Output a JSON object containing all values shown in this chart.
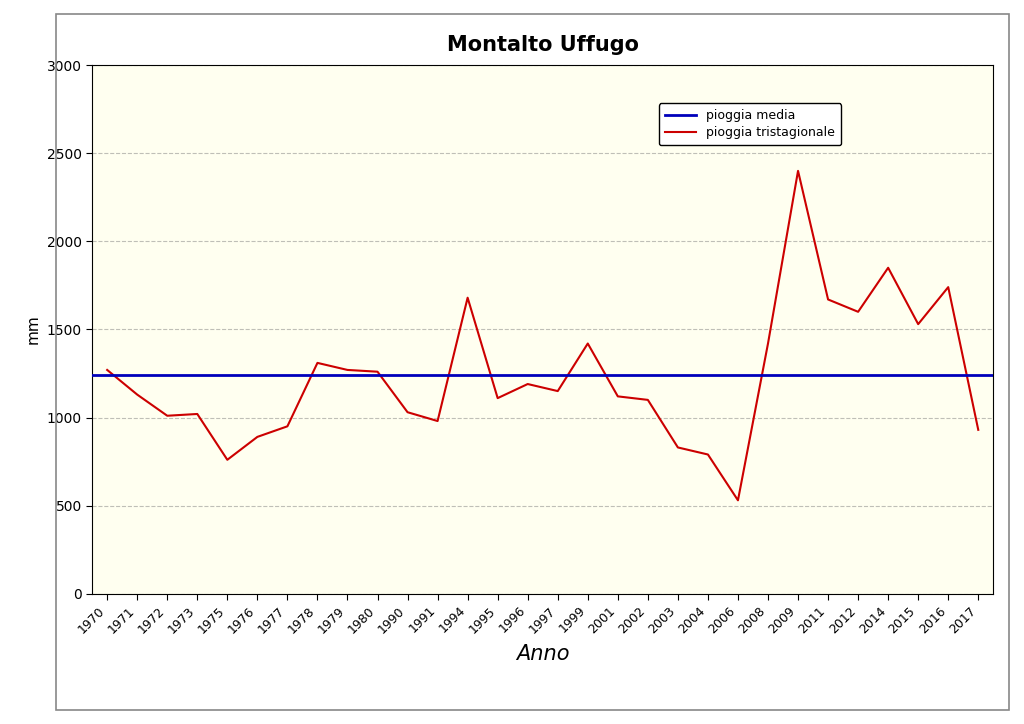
{
  "title": "Montalto Uffugo",
  "xlabel": "Anno",
  "ylabel": "mm",
  "mean_value": 1240,
  "mean_label": "pioggia media",
  "series_label": "pioggia tristagionale",
  "fig_bg_color": "#FFFFFF",
  "plot_bg_color": "#FFFFF0",
  "mean_color": "#0000BB",
  "series_color": "#CC0000",
  "ylim": [
    0,
    3000
  ],
  "yticks": [
    0,
    500,
    1000,
    1500,
    2000,
    2500,
    3000
  ],
  "years": [
    1970,
    1971,
    1972,
    1973,
    1975,
    1976,
    1977,
    1978,
    1979,
    1980,
    1990,
    1991,
    1994,
    1995,
    1996,
    1997,
    1999,
    2001,
    2002,
    2003,
    2004,
    2006,
    2008,
    2009,
    2011,
    2012,
    2014,
    2015,
    2016,
    2017
  ],
  "values": [
    1270,
    1130,
    1010,
    1020,
    760,
    890,
    950,
    1310,
    1270,
    1260,
    1030,
    980,
    1680,
    1110,
    1190,
    1150,
    1420,
    1120,
    1100,
    830,
    790,
    530,
    1420,
    2400,
    1670,
    1600,
    1850,
    1530,
    1740,
    930
  ],
  "legend_items": [
    "pioggia media",
    "pioggia tristagionale"
  ],
  "legend_colors": [
    "#0000BB",
    "#CC0000"
  ]
}
